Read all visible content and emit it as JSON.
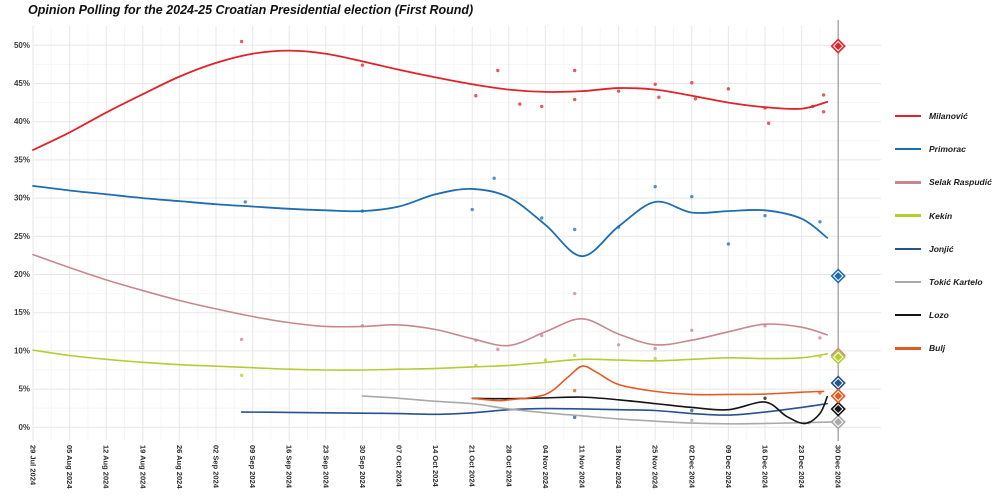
{
  "title": "Opinion Polling for the 2024-25 Croatian Presidential election (First Round)",
  "chart_data": {
    "type": "line",
    "title": "Opinion Polling for the 2024-25 Croatian Presidential election (First Round)",
    "xlabel": "",
    "ylabel": "",
    "units": "percent",
    "ylim": [
      0,
      50
    ],
    "y_tick_labels": [
      "0%",
      "5%",
      "10%",
      "15%",
      "20%",
      "25%",
      "30%",
      "35%",
      "40%",
      "45%",
      "50%"
    ],
    "x_tick_labels": [
      "29 Jul 2024",
      "05 Aug 2024",
      "12 Aug 2024",
      "19 Aug 2024",
      "26 Aug 2024",
      "02 Sep 2024",
      "09 Sep 2024",
      "16 Sep 2024",
      "23 Sep 2024",
      "30 Sep 2024",
      "07 Oct 2024",
      "14 Oct 2024",
      "21 Oct 2024",
      "28 Oct 2024",
      "04 Nov 2024",
      "11 Nov 2024",
      "18 Nov 2024",
      "25 Nov 2024",
      "02 Dec 2024",
      "09 Dec 2024",
      "16 Dec 2024",
      "23 Dec 2024",
      "30 Dec 2024"
    ],
    "grid": true,
    "legend_position": "right",
    "election_day": {
      "label": "30 Dec 2024",
      "week_index": 22,
      "line_color": "#999999"
    },
    "note": "trend and points are [week_index, percent]; week_index 0 = 29 Jul 2024, 22 = 30 Dec 2024; result = diamond marker at election-day line",
    "series": [
      {
        "name": "Milanović",
        "slug": "milanovic",
        "color": "#e12229",
        "result": 49.9,
        "trend": [
          [
            0,
            36.3
          ],
          [
            1,
            38.6
          ],
          [
            2,
            41.2
          ],
          [
            3,
            43.6
          ],
          [
            4,
            45.9
          ],
          [
            5,
            47.7
          ],
          [
            6,
            48.9
          ],
          [
            7,
            49.3
          ],
          [
            8,
            48.9
          ],
          [
            9,
            47.9
          ],
          [
            10,
            46.8
          ],
          [
            11,
            45.8
          ],
          [
            12,
            44.9
          ],
          [
            13,
            44.2
          ],
          [
            14,
            43.9
          ],
          [
            15,
            44.0
          ],
          [
            16,
            44.4
          ],
          [
            17,
            44.2
          ],
          [
            18,
            43.4
          ],
          [
            19,
            42.5
          ],
          [
            20,
            41.9
          ],
          [
            21,
            41.7
          ],
          [
            21.7,
            42.6
          ]
        ],
        "points": [
          [
            5.7,
            50.5
          ],
          [
            9.0,
            47.4
          ],
          [
            12.1,
            43.4
          ],
          [
            12.7,
            46.7
          ],
          [
            13.3,
            42.3
          ],
          [
            13.9,
            42.0
          ],
          [
            14.8,
            46.7
          ],
          [
            14.8,
            42.9
          ],
          [
            16.0,
            44.0
          ],
          [
            17.0,
            44.9
          ],
          [
            17.1,
            43.2
          ],
          [
            18.0,
            45.1
          ],
          [
            18.1,
            43.0
          ],
          [
            19.0,
            44.3
          ],
          [
            20.0,
            41.8
          ],
          [
            20.1,
            39.8
          ],
          [
            21.3,
            42.0
          ],
          [
            21.6,
            43.5
          ],
          [
            21.6,
            41.3
          ]
        ]
      },
      {
        "name": "Primorac",
        "slug": "primorac",
        "color": "#1e6db2",
        "result": 19.8,
        "trend": [
          [
            0,
            31.6
          ],
          [
            1,
            31.0
          ],
          [
            2,
            30.5
          ],
          [
            3,
            30.0
          ],
          [
            4,
            29.6
          ],
          [
            5,
            29.2
          ],
          [
            6,
            28.9
          ],
          [
            7,
            28.6
          ],
          [
            8,
            28.4
          ],
          [
            9,
            28.3
          ],
          [
            10,
            28.9
          ],
          [
            11,
            30.5
          ],
          [
            12,
            31.2
          ],
          [
            13,
            30.1
          ],
          [
            14,
            26.5
          ],
          [
            15,
            22.4
          ],
          [
            16,
            26.3
          ],
          [
            17,
            29.5
          ],
          [
            18,
            28.1
          ],
          [
            19,
            28.3
          ],
          [
            20,
            28.4
          ],
          [
            21,
            27.3
          ],
          [
            21.7,
            24.8
          ]
        ],
        "points": [
          [
            5.8,
            29.5
          ],
          [
            9.0,
            28.3
          ],
          [
            12.0,
            28.5
          ],
          [
            12.6,
            32.6
          ],
          [
            13.9,
            27.4
          ],
          [
            14.8,
            25.9
          ],
          [
            16.0,
            26.2
          ],
          [
            17.0,
            31.5
          ],
          [
            18.0,
            30.2
          ],
          [
            19.0,
            24.0
          ],
          [
            20.0,
            27.7
          ],
          [
            21.5,
            26.9
          ]
        ]
      },
      {
        "name": "Selak Raspudić",
        "slug": "selak-raspudic",
        "color": "#c8878f",
        "result": 9.45,
        "trend": [
          [
            0,
            22.6
          ],
          [
            1,
            20.9
          ],
          [
            2,
            19.3
          ],
          [
            3,
            17.9
          ],
          [
            4,
            16.6
          ],
          [
            5,
            15.5
          ],
          [
            6,
            14.5
          ],
          [
            7,
            13.7
          ],
          [
            8,
            13.2
          ],
          [
            9,
            13.2
          ],
          [
            10,
            13.4
          ],
          [
            11,
            12.8
          ],
          [
            12,
            11.6
          ],
          [
            13,
            10.7
          ],
          [
            14,
            12.5
          ],
          [
            15,
            14.2
          ],
          [
            16,
            12.2
          ],
          [
            17,
            10.8
          ],
          [
            18,
            11.4
          ],
          [
            19,
            12.5
          ],
          [
            20,
            13.5
          ],
          [
            21,
            13.1
          ],
          [
            21.7,
            12.1
          ]
        ],
        "points": [
          [
            5.7,
            11.5
          ],
          [
            9.0,
            13.3
          ],
          [
            12.1,
            11.4
          ],
          [
            12.7,
            10.2
          ],
          [
            13.9,
            12.0
          ],
          [
            14.8,
            17.5
          ],
          [
            16.0,
            10.8
          ],
          [
            17.0,
            10.3
          ],
          [
            18.0,
            12.7
          ],
          [
            20.0,
            13.3
          ],
          [
            21.5,
            11.7
          ]
        ]
      },
      {
        "name": "Kekin",
        "slug": "kekin",
        "color": "#b7cc33",
        "result": 9.2,
        "trend": [
          [
            0,
            10.1
          ],
          [
            1,
            9.4
          ],
          [
            2,
            8.9
          ],
          [
            3,
            8.5
          ],
          [
            4,
            8.2
          ],
          [
            5,
            8.0
          ],
          [
            6,
            7.8
          ],
          [
            7,
            7.6
          ],
          [
            8,
            7.5
          ],
          [
            9,
            7.5
          ],
          [
            10,
            7.6
          ],
          [
            11,
            7.7
          ],
          [
            12,
            7.9
          ],
          [
            13,
            8.1
          ],
          [
            14,
            8.5
          ],
          [
            15,
            8.9
          ],
          [
            16,
            8.8
          ],
          [
            17,
            8.7
          ],
          [
            18,
            8.9
          ],
          [
            19,
            9.1
          ],
          [
            20,
            9.0
          ],
          [
            21,
            9.1
          ],
          [
            21.7,
            9.6
          ]
        ],
        "points": [
          [
            5.7,
            6.8
          ],
          [
            12.1,
            8.1
          ],
          [
            14.0,
            8.8
          ],
          [
            14.8,
            9.4
          ],
          [
            17.0,
            9.0
          ],
          [
            21.5,
            9.3
          ]
        ]
      },
      {
        "name": "Jonjić",
        "slug": "jonjic",
        "color": "#28518f",
        "result": 5.8,
        "trend": [
          [
            5.7,
            2.0
          ],
          [
            7,
            1.95
          ],
          [
            8,
            1.9
          ],
          [
            9,
            1.85
          ],
          [
            10,
            1.8
          ],
          [
            11,
            1.7
          ],
          [
            12,
            1.9
          ],
          [
            13,
            2.3
          ],
          [
            14,
            2.45
          ],
          [
            15,
            2.4
          ],
          [
            16,
            2.3
          ],
          [
            17,
            2.2
          ],
          [
            18,
            1.8
          ],
          [
            19,
            1.6
          ],
          [
            20,
            2.0
          ],
          [
            21,
            2.6
          ],
          [
            21.7,
            3.1
          ]
        ],
        "points": [
          [
            14.8,
            1.3
          ],
          [
            18.0,
            2.2
          ]
        ]
      },
      {
        "name": "Tokić Kartelo",
        "slug": "tokic-kartelo",
        "color": "#a9a9a9",
        "result": 0.7,
        "trend": [
          [
            9,
            4.1
          ],
          [
            10,
            3.8
          ],
          [
            11,
            3.4
          ],
          [
            12,
            3.1
          ],
          [
            13,
            2.4
          ],
          [
            14,
            1.9
          ],
          [
            15,
            1.5
          ],
          [
            16,
            1.1
          ],
          [
            17,
            0.8
          ],
          [
            18,
            0.55
          ],
          [
            19,
            0.45
          ],
          [
            20,
            0.5
          ],
          [
            21,
            0.6
          ],
          [
            21.9,
            0.7
          ]
        ],
        "points": [
          [
            18.0,
            0.9
          ],
          [
            21.2,
            0.6
          ]
        ]
      },
      {
        "name": "Lozo",
        "slug": "lozo",
        "color": "#141414",
        "result": 2.4,
        "trend": [
          [
            12,
            3.8
          ],
          [
            13,
            3.75
          ],
          [
            14,
            3.85
          ],
          [
            15,
            3.95
          ],
          [
            16,
            3.6
          ],
          [
            17,
            3.1
          ],
          [
            18,
            2.6
          ],
          [
            19,
            2.3
          ],
          [
            20,
            3.3
          ],
          [
            20.6,
            1.4
          ],
          [
            21.1,
            0.5
          ],
          [
            21.5,
            1.8
          ],
          [
            21.7,
            4.0
          ]
        ],
        "points": [
          [
            20.0,
            3.8
          ]
        ]
      },
      {
        "name": "Bulj",
        "slug": "bulj",
        "color": "#e35b20",
        "result": 4.1,
        "trend": [
          [
            12,
            3.8
          ],
          [
            12.7,
            3.5
          ],
          [
            13,
            3.6
          ],
          [
            14,
            4.3
          ],
          [
            14.6,
            6.5
          ],
          [
            15,
            8.0
          ],
          [
            15.4,
            7.2
          ],
          [
            16,
            5.6
          ],
          [
            17,
            4.7
          ],
          [
            18,
            4.3
          ],
          [
            19,
            4.3
          ],
          [
            20,
            4.35
          ],
          [
            21,
            4.6
          ],
          [
            21.6,
            4.7
          ]
        ],
        "points": [
          [
            14.8,
            4.8
          ],
          [
            21.5,
            4.5
          ]
        ]
      }
    ]
  }
}
